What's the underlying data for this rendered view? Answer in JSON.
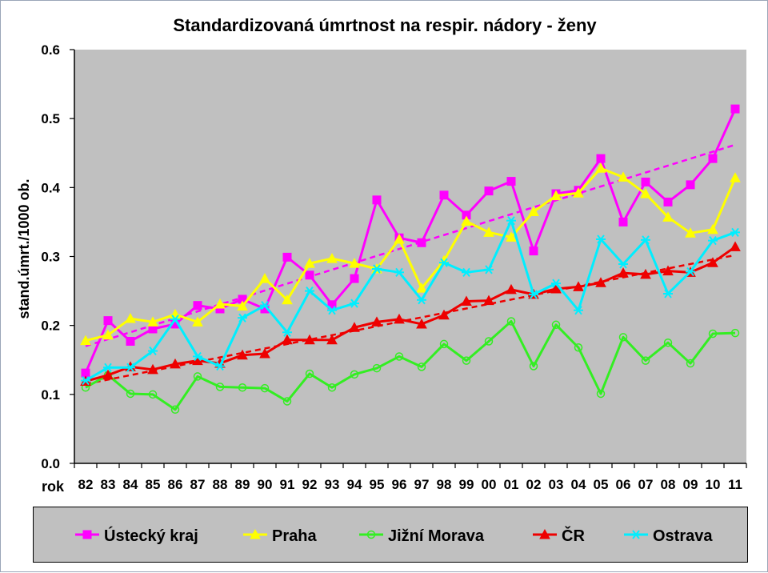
{
  "chart_data": {
    "type": "line",
    "title": "Standardizovaná úmrtnost na respir. nádory - ženy",
    "ylabel": "stand.úmrt./1000 ob.",
    "xlabel": "rok",
    "ylim": [
      0,
      0.6
    ],
    "yticks": [
      "0.0",
      "0.1",
      "0.2",
      "0.3",
      "0.4",
      "0.5",
      "0.6"
    ],
    "categories": [
      "82",
      "83",
      "84",
      "85",
      "86",
      "87",
      "88",
      "89",
      "90",
      "91",
      "92",
      "93",
      "94",
      "95",
      "96",
      "97",
      "98",
      "99",
      "00",
      "01",
      "02",
      "03",
      "04",
      "05",
      "06",
      "07",
      "08",
      "09",
      "10",
      "11"
    ],
    "grid": false,
    "legend_position": "bottom",
    "series": [
      {
        "name": "Ústecký kraj",
        "color": "#ff00ff",
        "marker": "square",
        "values": [
          0.131,
          0.207,
          0.177,
          0.195,
          0.202,
          0.229,
          0.224,
          0.238,
          0.224,
          0.299,
          0.273,
          0.23,
          0.268,
          0.382,
          0.327,
          0.32,
          0.389,
          0.36,
          0.395,
          0.409,
          0.308,
          0.391,
          0.396,
          0.442,
          0.35,
          0.408,
          0.379,
          0.404,
          0.442,
          0.514
        ]
      },
      {
        "name": "Praha",
        "color": "#ffff00",
        "marker": "triangle",
        "values": [
          0.178,
          0.186,
          0.21,
          0.205,
          0.216,
          0.205,
          0.231,
          0.228,
          0.268,
          0.237,
          0.29,
          0.297,
          0.29,
          0.282,
          0.325,
          0.254,
          0.294,
          0.351,
          0.335,
          0.328,
          0.365,
          0.388,
          0.392,
          0.428,
          0.415,
          0.391,
          0.357,
          0.334,
          0.339,
          0.414
        ]
      },
      {
        "name": "Jižní Morava",
        "color": "#33ee22",
        "marker": "circle",
        "values": [
          0.11,
          0.128,
          0.101,
          0.1,
          0.078,
          0.126,
          0.111,
          0.11,
          0.109,
          0.09,
          0.13,
          0.11,
          0.129,
          0.138,
          0.155,
          0.14,
          0.173,
          0.149,
          0.177,
          0.206,
          0.141,
          0.201,
          0.168,
          0.101,
          0.183,
          0.149,
          0.175,
          0.145,
          0.188,
          0.189
        ]
      },
      {
        "name": "ČR",
        "color": "#ee0000",
        "marker": "triangle",
        "values": [
          0.119,
          0.128,
          0.14,
          0.136,
          0.144,
          0.149,
          0.145,
          0.157,
          0.159,
          0.179,
          0.179,
          0.179,
          0.197,
          0.205,
          0.209,
          0.202,
          0.215,
          0.235,
          0.236,
          0.252,
          0.245,
          0.253,
          0.256,
          0.262,
          0.276,
          0.274,
          0.279,
          0.277,
          0.291,
          0.314
        ]
      },
      {
        "name": "Ostrava",
        "color": "#00eeff",
        "marker": "star",
        "values": [
          0.12,
          0.139,
          0.139,
          0.163,
          0.209,
          0.155,
          0.141,
          0.211,
          0.229,
          0.19,
          0.25,
          0.222,
          0.232,
          0.282,
          0.277,
          0.237,
          0.291,
          0.277,
          0.281,
          0.352,
          0.245,
          0.261,
          0.222,
          0.325,
          0.289,
          0.324,
          0.246,
          0.278,
          0.323,
          0.335
        ]
      }
    ],
    "trendlines": [
      {
        "color": "#ff00ff",
        "style": "dashed",
        "start": 0.17,
        "end": 0.462
      },
      {
        "color": "#ee0000",
        "style": "dashed",
        "start": 0.115,
        "end": 0.302
      }
    ]
  }
}
